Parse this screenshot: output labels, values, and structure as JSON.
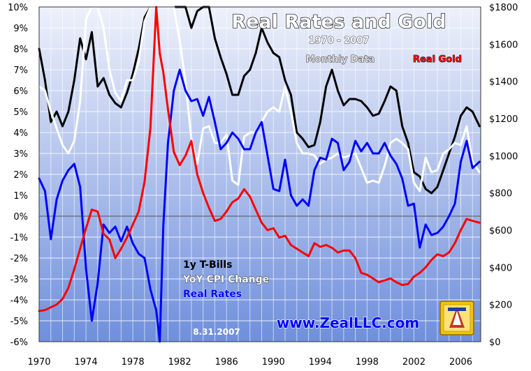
{
  "chart_data": {
    "type": "line",
    "title": "Real Rates and Gold",
    "subtitle": "1970 - 2007",
    "note": "Monthly Data",
    "date_stamp": "8.31.2007",
    "website": "www.ZealLLC.com",
    "right_axis_legend": "Real Gold",
    "legend": [
      "1y T-Bills",
      "YoY CPI Change",
      "Real Rates"
    ],
    "x_ticks": [
      "1970",
      "1974",
      "1978",
      "1982",
      "1986",
      "1990",
      "1994",
      "1998",
      "2002",
      "2006"
    ],
    "y_left_ticks": [
      "10%",
      "9%",
      "8%",
      "7%",
      "6%",
      "5%",
      "4%",
      "3%",
      "2%",
      "1%",
      "0%",
      "-1%",
      "-2%",
      "-3%",
      "-4%",
      "-5%",
      "-6%"
    ],
    "y_right_ticks": [
      "$1800",
      "$1600",
      "$1400",
      "$1200",
      "$1000",
      "$800",
      "$600",
      "$400",
      "$200",
      "$0"
    ],
    "xlim": [
      1970,
      2007.7
    ],
    "ylim_left": [
      -6,
      10
    ],
    "ylim_right": [
      0,
      1800
    ],
    "grid": true,
    "colors": {
      "tbills": "#000000",
      "cpi": "#ffffff",
      "real_rates": "#0000ff",
      "real_gold": "#ff0000",
      "bg_top": "#eef1fb",
      "bg_bottom": "#6f8fdc",
      "grid": "#ffffff",
      "title_fill": "#ffffff",
      "title_stroke": "#000000",
      "website": "#0000ff"
    },
    "series": [
      {
        "name": "1y T-Bills",
        "axis": "left",
        "x": [
          1970.0,
          1970.5,
          1971.0,
          1971.5,
          1972.0,
          1972.5,
          1973.0,
          1973.5,
          1974.0,
          1974.5,
          1975.0,
          1975.5,
          1976.0,
          1976.5,
          1977.0,
          1977.5,
          1978.0,
          1978.5,
          1979.0,
          1979.5,
          1980.0,
          1980.5,
          1981.0,
          1981.5,
          1982.0,
          1982.5,
          1983.0,
          1983.5,
          1984.0,
          1984.5,
          1985.0,
          1985.5,
          1986.0,
          1986.5,
          1987.0,
          1987.5,
          1988.0,
          1988.5,
          1989.0,
          1989.5,
          1990.0,
          1990.5,
          1991.0,
          1991.5,
          1992.0,
          1992.5,
          1993.0,
          1993.5,
          1994.0,
          1994.5,
          1995.0,
          1995.5,
          1996.0,
          1996.5,
          1997.0,
          1997.5,
          1998.0,
          1998.5,
          1999.0,
          1999.5,
          2000.0,
          2000.5,
          2001.0,
          2001.5,
          2002.0,
          2002.5,
          2003.0,
          2003.5,
          2004.0,
          2004.5,
          2005.0,
          2005.5,
          2006.0,
          2006.5,
          2007.0,
          2007.6
        ],
        "values": [
          8.0,
          6.5,
          4.5,
          5.0,
          4.3,
          5.0,
          6.5,
          8.5,
          7.5,
          8.8,
          6.2,
          6.6,
          5.8,
          5.4,
          5.2,
          5.9,
          6.8,
          8.0,
          9.5,
          10.0,
          10.0,
          10.0,
          10.0,
          10.0,
          10.0,
          10.0,
          9.0,
          9.8,
          10.0,
          10.0,
          8.5,
          7.6,
          6.8,
          5.8,
          5.8,
          6.7,
          7.0,
          7.8,
          9.0,
          8.3,
          7.8,
          7.6,
          6.5,
          5.8,
          4.0,
          3.7,
          3.3,
          3.4,
          4.5,
          6.2,
          7.0,
          6.0,
          5.3,
          5.6,
          5.6,
          5.5,
          5.2,
          4.8,
          4.9,
          5.5,
          6.2,
          6.0,
          4.3,
          3.5,
          2.1,
          1.9,
          1.3,
          1.1,
          1.4,
          2.2,
          3.0,
          3.8,
          4.8,
          5.2,
          5.0,
          4.3
        ]
      },
      {
        "name": "YoY CPI Change",
        "axis": "left",
        "x": [
          1970.0,
          1970.5,
          1971.0,
          1971.5,
          1972.0,
          1972.5,
          1973.0,
          1973.5,
          1974.0,
          1974.5,
          1975.0,
          1975.5,
          1976.0,
          1976.5,
          1977.0,
          1977.5,
          1978.0,
          1978.5,
          1979.0,
          1979.5,
          1980.0,
          1980.5,
          1981.0,
          1981.5,
          1982.0,
          1982.5,
          1983.0,
          1983.5,
          1984.0,
          1984.5,
          1985.0,
          1985.5,
          1986.0,
          1986.5,
          1987.0,
          1987.5,
          1988.0,
          1988.5,
          1989.0,
          1989.5,
          1990.0,
          1990.5,
          1991.0,
          1991.5,
          1992.0,
          1992.5,
          1993.0,
          1993.5,
          1994.0,
          1994.5,
          1995.0,
          1995.5,
          1996.0,
          1996.5,
          1997.0,
          1997.5,
          1998.0,
          1998.5,
          1999.0,
          1999.5,
          2000.0,
          2000.5,
          2001.0,
          2001.5,
          2002.0,
          2002.5,
          2003.0,
          2003.5,
          2004.0,
          2004.5,
          2005.0,
          2005.5,
          2006.0,
          2006.5,
          2007.0,
          2007.6
        ],
        "values": [
          6.2,
          6.0,
          5.0,
          4.2,
          3.4,
          3.0,
          3.6,
          5.5,
          9.4,
          10.0,
          10.0,
          9.0,
          7.0,
          5.9,
          5.5,
          6.5,
          6.5,
          7.4,
          9.3,
          10.0,
          10.0,
          10.0,
          10.0,
          10.0,
          8.4,
          6.4,
          3.7,
          2.5,
          4.2,
          4.3,
          3.5,
          3.5,
          3.9,
          1.7,
          1.5,
          3.8,
          4.0,
          4.0,
          4.5,
          5.0,
          5.2,
          5.0,
          6.2,
          5.0,
          3.5,
          3.0,
          3.0,
          2.9,
          2.5,
          2.7,
          2.8,
          3.0,
          2.8,
          2.9,
          3.0,
          2.3,
          1.6,
          1.7,
          1.6,
          2.4,
          3.5,
          3.7,
          3.5,
          3.2,
          1.6,
          1.2,
          2.8,
          2.1,
          2.2,
          3.0,
          3.2,
          3.5,
          3.4,
          4.3,
          2.6,
          2.1
        ]
      },
      {
        "name": "Real Rates",
        "axis": "left",
        "x": [
          1970.0,
          1970.5,
          1971.0,
          1971.5,
          1972.0,
          1972.5,
          1973.0,
          1973.5,
          1974.0,
          1974.5,
          1975.0,
          1975.5,
          1976.0,
          1976.5,
          1977.0,
          1977.5,
          1978.0,
          1978.5,
          1979.0,
          1979.5,
          1980.0,
          1980.3,
          1980.6,
          1981.0,
          1981.5,
          1982.0,
          1982.5,
          1983.0,
          1983.5,
          1984.0,
          1984.5,
          1985.0,
          1985.5,
          1986.0,
          1986.5,
          1987.0,
          1987.5,
          1988.0,
          1988.5,
          1989.0,
          1989.5,
          1990.0,
          1990.5,
          1991.0,
          1991.5,
          1992.0,
          1992.5,
          1993.0,
          1993.5,
          1994.0,
          1994.5,
          1995.0,
          1995.5,
          1996.0,
          1996.5,
          1997.0,
          1997.5,
          1998.0,
          1998.5,
          1999.0,
          1999.5,
          2000.0,
          2000.5,
          2001.0,
          2001.5,
          2002.0,
          2002.5,
          2003.0,
          2003.5,
          2004.0,
          2004.5,
          2005.0,
          2005.5,
          2006.0,
          2006.5,
          2007.0,
          2007.6
        ],
        "values": [
          1.8,
          1.2,
          -1.1,
          0.8,
          1.7,
          2.2,
          2.5,
          1.4,
          -2.5,
          -5.0,
          -3.2,
          -0.4,
          -0.8,
          -0.5,
          -1.2,
          -0.5,
          -1.3,
          -1.8,
          -2.0,
          -3.5,
          -4.5,
          -6.0,
          -0.5,
          3.5,
          6.0,
          7.0,
          6.0,
          5.5,
          5.6,
          4.8,
          5.7,
          4.5,
          3.2,
          3.5,
          4.0,
          3.7,
          3.2,
          3.2,
          4.0,
          4.5,
          2.9,
          1.3,
          1.2,
          2.7,
          1.0,
          0.5,
          0.8,
          0.5,
          2.2,
          2.8,
          2.7,
          3.7,
          3.5,
          2.2,
          2.6,
          3.6,
          3.1,
          3.5,
          3.0,
          3.0,
          3.5,
          2.9,
          2.5,
          1.8,
          0.5,
          0.6,
          -1.5,
          -0.4,
          -0.9,
          -0.8,
          -0.5,
          0.0,
          0.6,
          2.6,
          3.6,
          2.3,
          2.6
        ]
      },
      {
        "name": "Real Gold",
        "axis": "right",
        "x": [
          1970.0,
          1970.5,
          1971.0,
          1971.5,
          1972.0,
          1972.5,
          1973.0,
          1973.5,
          1974.0,
          1974.5,
          1975.0,
          1975.5,
          1976.0,
          1976.5,
          1977.0,
          1977.5,
          1978.0,
          1978.5,
          1979.0,
          1979.5,
          1980.0,
          1980.3,
          1980.6,
          1981.0,
          1981.5,
          1982.0,
          1982.5,
          1983.0,
          1983.5,
          1984.0,
          1984.5,
          1985.0,
          1985.5,
          1986.0,
          1986.5,
          1987.0,
          1987.5,
          1988.0,
          1988.5,
          1989.0,
          1989.5,
          1990.0,
          1990.5,
          1991.0,
          1991.5,
          1992.0,
          1992.5,
          1993.0,
          1993.5,
          1994.0,
          1994.5,
          1995.0,
          1995.5,
          1996.0,
          1996.5,
          1997.0,
          1997.5,
          1998.0,
          1998.5,
          1999.0,
          1999.5,
          2000.0,
          2000.5,
          2001.0,
          2001.5,
          2002.0,
          2002.5,
          2003.0,
          2003.5,
          2004.0,
          2004.5,
          2005.0,
          2005.5,
          2006.0,
          2006.5,
          2007.0,
          2007.6
        ],
        "values": [
          165,
          170,
          185,
          200,
          230,
          290,
          390,
          500,
          610,
          710,
          700,
          580,
          550,
          450,
          500,
          560,
          630,
          700,
          860,
          1150,
          1800,
          1550,
          1450,
          1250,
          1020,
          950,
          1000,
          1080,
          900,
          800,
          720,
          650,
          660,
          700,
          750,
          770,
          820,
          780,
          710,
          640,
          600,
          610,
          560,
          570,
          520,
          500,
          480,
          460,
          530,
          510,
          520,
          505,
          480,
          490,
          490,
          450,
          370,
          360,
          340,
          320,
          330,
          340,
          320,
          305,
          310,
          350,
          370,
          400,
          440,
          470,
          460,
          480,
          530,
          600,
          660,
          650,
          640
        ]
      }
    ]
  }
}
